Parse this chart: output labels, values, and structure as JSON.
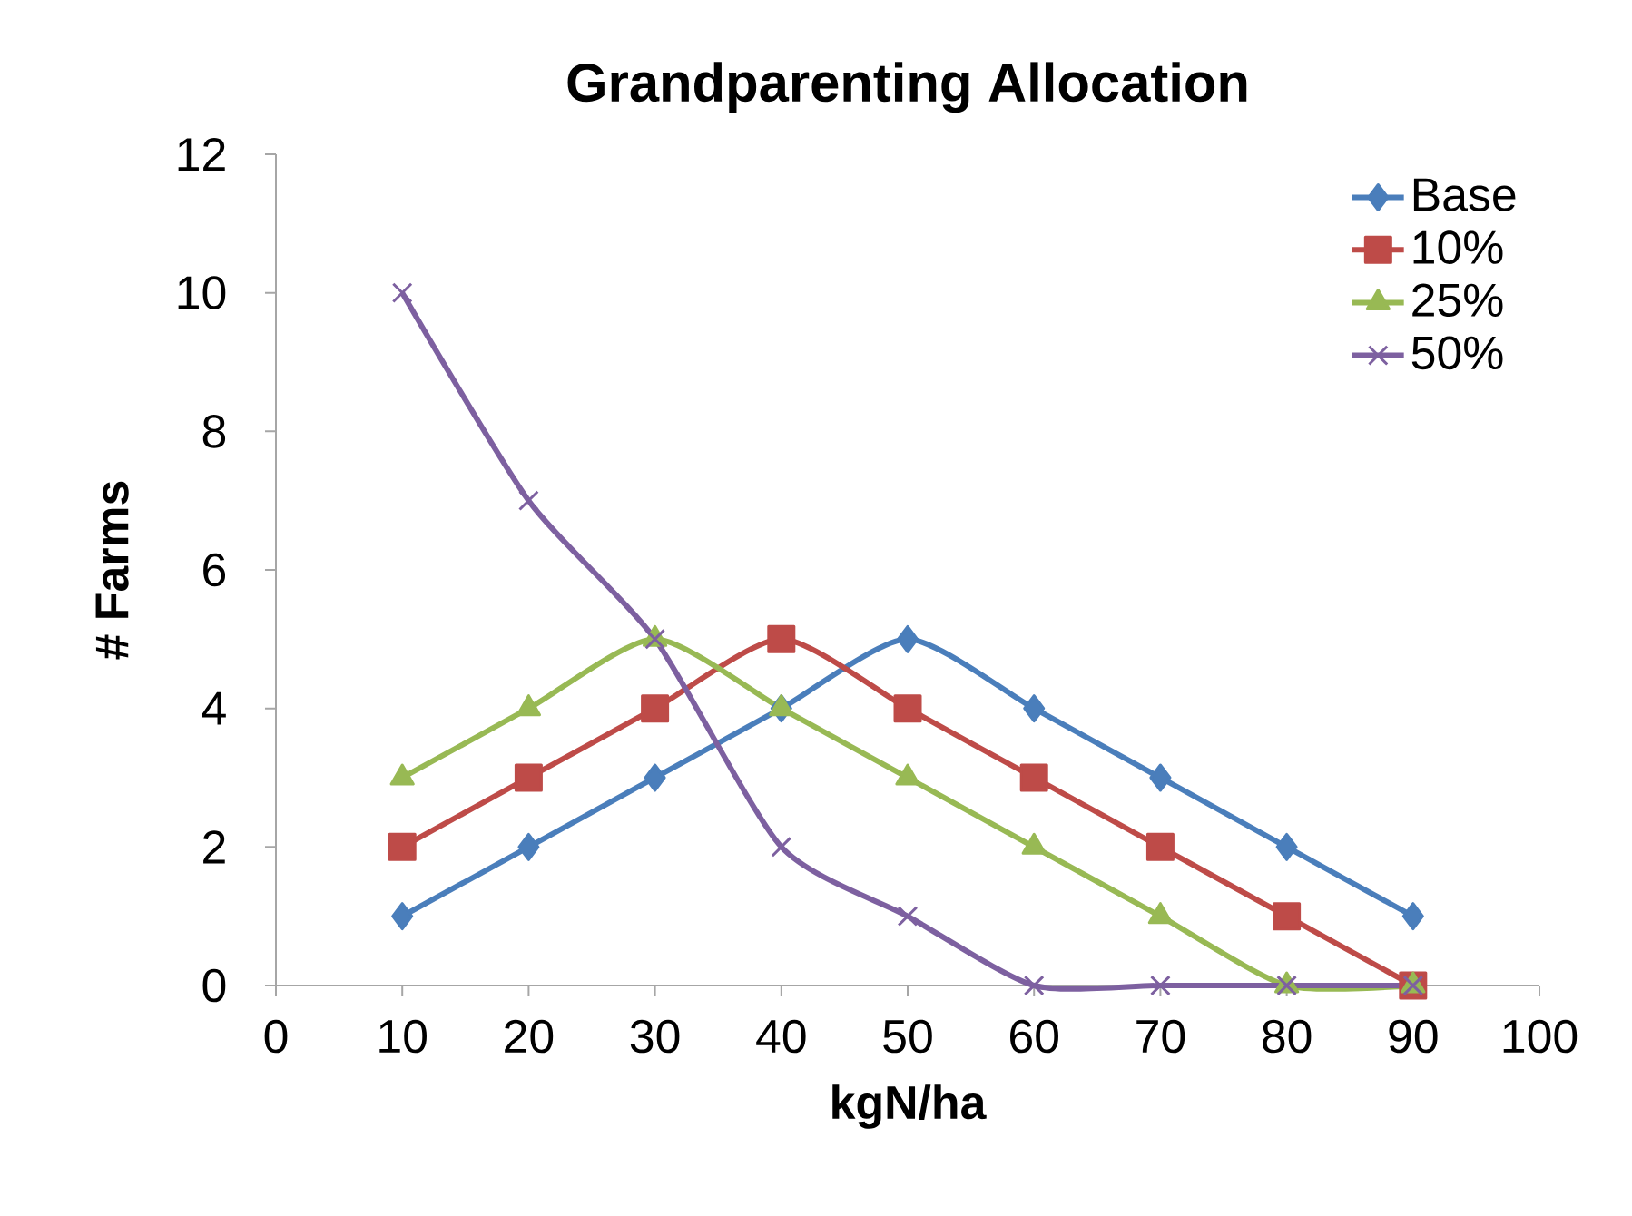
{
  "chart_data": {
    "type": "line",
    "title": "Grandparenting Allocation",
    "xlabel": "kgN/ha",
    "ylabel": "# Farms",
    "x": [
      10,
      20,
      30,
      40,
      50,
      60,
      70,
      80,
      90
    ],
    "series": [
      {
        "name": "Base",
        "color": "#4a7ebb",
        "marker": "diamond",
        "values": [
          1,
          2,
          3,
          4,
          5,
          4,
          3,
          2,
          1
        ]
      },
      {
        "name": "10%",
        "color": "#be4b48",
        "marker": "square",
        "values": [
          2,
          3,
          4,
          5,
          4,
          3,
          2,
          1,
          0
        ]
      },
      {
        "name": "25%",
        "color": "#98b954",
        "marker": "triangle",
        "values": [
          3,
          4,
          5,
          4,
          3,
          2,
          1,
          0,
          0
        ]
      },
      {
        "name": "50%",
        "color": "#7d60a0",
        "marker": "cross",
        "values": [
          10,
          7,
          5,
          2,
          1,
          0,
          0,
          0,
          0
        ]
      }
    ],
    "xlim": [
      0,
      100
    ],
    "xticks": [
      0,
      10,
      20,
      30,
      40,
      50,
      60,
      70,
      80,
      90,
      100
    ],
    "ylim": [
      0,
      12
    ],
    "yticks": [
      0,
      2,
      4,
      6,
      8,
      10,
      12
    ],
    "grid": false,
    "legend": "top right",
    "line_style": "solid"
  }
}
